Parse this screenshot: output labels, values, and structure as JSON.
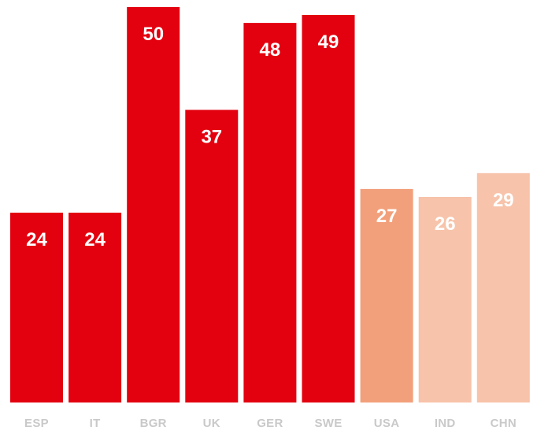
{
  "chart_data": {
    "type": "bar",
    "categories": [
      "ESP",
      "IT",
      "BGR",
      "UK",
      "GER",
      "SWE",
      "USA",
      "IND",
      "CHN"
    ],
    "values": [
      24,
      24,
      50,
      37,
      48,
      49,
      27,
      26,
      29
    ],
    "bar_colors": [
      "#e3000f",
      "#e3000f",
      "#e3000f",
      "#e3000f",
      "#e3000f",
      "#e3000f",
      "#f2a07b",
      "#f7c3aa",
      "#f7c3aa"
    ],
    "title": "",
    "xlabel": "",
    "ylabel": "",
    "ylim": [
      0,
      50
    ],
    "grid": false,
    "legend": "none",
    "value_label_color": "#ffffff",
    "tick_label_color": "#c9c9c9"
  }
}
